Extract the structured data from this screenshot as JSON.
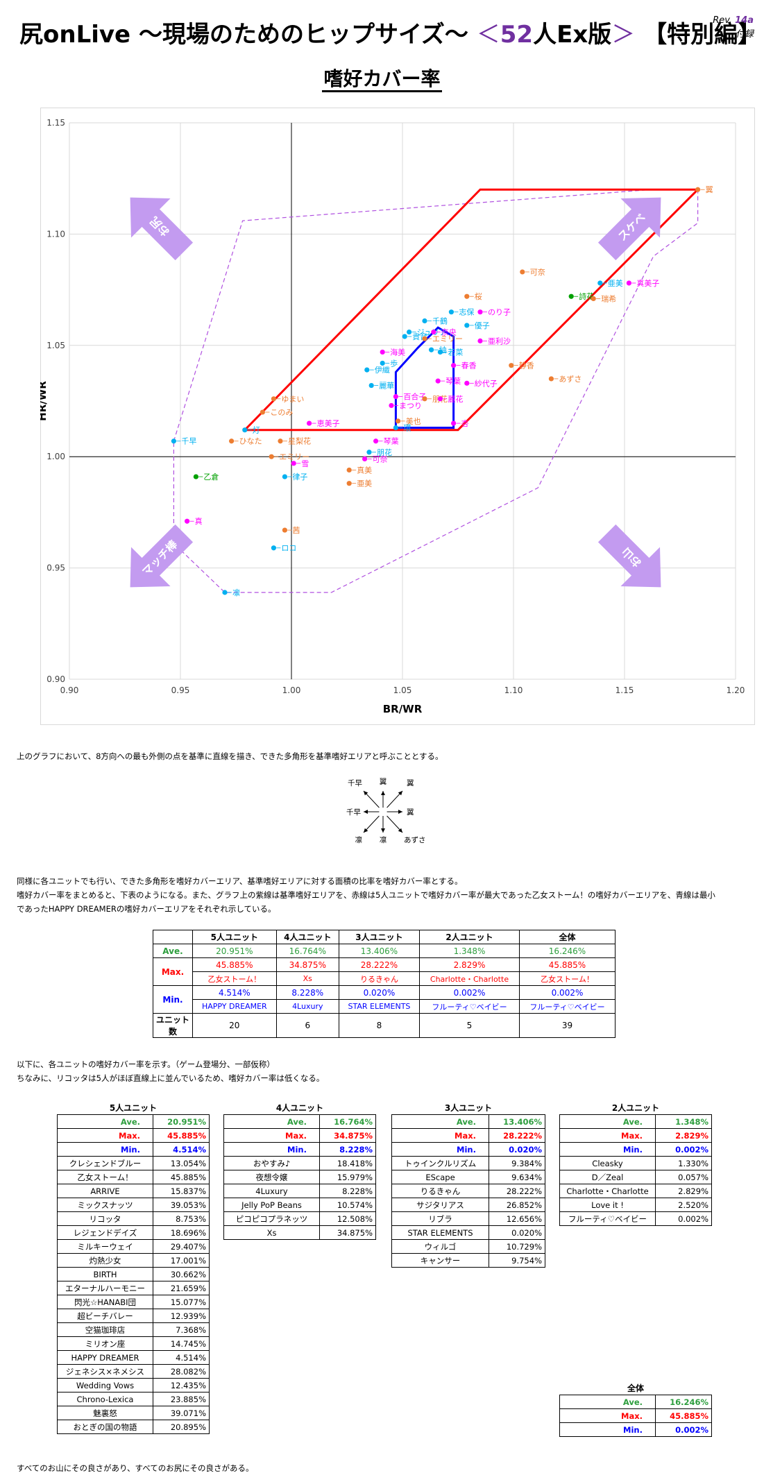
{
  "header": {
    "title_main": "尻onLive ～現場のためのヒップサイズ～",
    "title_open": "＜",
    "title_num": "52",
    "title_mid": "人Ex版",
    "title_close": "＞",
    "title_special": "【特別編】",
    "rev_label": "Rev.",
    "rev_value": "14a",
    "appendix": "付録"
  },
  "colors": {
    "purple": "#7030a0",
    "red": "#ff0000",
    "blue": "#0000ff",
    "green": "#2e9e3e",
    "cyan": "#00b0f0",
    "orange": "#ed7d31",
    "magenta": "#ff00ff",
    "dkgreen": "#00a000"
  },
  "chart_data": {
    "type": "scatter",
    "title": "嗜好カバー率",
    "xlabel": "BR/WR",
    "ylabel": "HR/WR",
    "xlim": [
      0.9,
      1.2
    ],
    "ylim": [
      0.9,
      1.15
    ],
    "xticks": [
      "0.90",
      "0.95",
      "1.00",
      "1.05",
      "1.10",
      "1.15",
      "1.20"
    ],
    "yticks": [
      "0.90",
      "0.95",
      "1.00",
      "1.05",
      "1.10",
      "1.15"
    ],
    "grid": true,
    "crosshair": [
      1.0,
      1.0
    ],
    "points": [
      {
        "x": 1.183,
        "y": 1.12,
        "label": "翼",
        "color": "#ed7d31"
      },
      {
        "x": 1.104,
        "y": 1.083,
        "label": "可奈",
        "color": "#ed7d31"
      },
      {
        "x": 1.139,
        "y": 1.078,
        "label": "亜美",
        "color": "#00b0f0"
      },
      {
        "x": 1.152,
        "y": 1.078,
        "label": "真美子",
        "color": "#ff00ff"
      },
      {
        "x": 1.126,
        "y": 1.072,
        "label": "詩花",
        "color": "#00a000"
      },
      {
        "x": 1.136,
        "y": 1.071,
        "label": "瑞希",
        "color": "#ed7d31"
      },
      {
        "x": 1.079,
        "y": 1.072,
        "label": "桜",
        "color": "#ed7d31"
      },
      {
        "x": 1.072,
        "y": 1.065,
        "label": "志保",
        "color": "#00b0f0"
      },
      {
        "x": 1.085,
        "y": 1.065,
        "label": "のり子",
        "color": "#ff00ff"
      },
      {
        "x": 1.06,
        "y": 1.061,
        "label": "千鶴",
        "color": "#00b0f0"
      },
      {
        "x": 1.079,
        "y": 1.059,
        "label": "優子",
        "color": "#00b0f0"
      },
      {
        "x": 1.053,
        "y": 1.056,
        "label": "ジュリア",
        "color": "#00b0f0"
      },
      {
        "x": 1.064,
        "y": 1.056,
        "label": "奈央",
        "color": "#ff00ff"
      },
      {
        "x": 1.051,
        "y": 1.054,
        "label": "貴音",
        "color": "#00b0f0"
      },
      {
        "x": 1.06,
        "y": 1.053,
        "label": "エミリー",
        "color": "#ed7d31"
      },
      {
        "x": 1.085,
        "y": 1.052,
        "label": "亜利沙",
        "color": "#ff00ff"
      },
      {
        "x": 1.063,
        "y": 1.048,
        "label": "紬",
        "color": "#00b0f0"
      },
      {
        "x": 1.067,
        "y": 1.047,
        "label": "若菜",
        "color": "#00b0f0"
      },
      {
        "x": 1.041,
        "y": 1.047,
        "label": "海美",
        "color": "#ff00ff"
      },
      {
        "x": 1.041,
        "y": 1.042,
        "label": "歩",
        "color": "#00b0f0"
      },
      {
        "x": 1.073,
        "y": 1.041,
        "label": "春香",
        "color": "#ff00ff"
      },
      {
        "x": 1.099,
        "y": 1.041,
        "label": "静香",
        "color": "#ed7d31"
      },
      {
        "x": 1.034,
        "y": 1.039,
        "label": "伊織",
        "color": "#00b0f0"
      },
      {
        "x": 1.066,
        "y": 1.034,
        "label": "琴葉",
        "color": "#ff00ff"
      },
      {
        "x": 1.079,
        "y": 1.033,
        "label": "紗代子",
        "color": "#ff00ff"
      },
      {
        "x": 1.117,
        "y": 1.035,
        "label": "あずさ",
        "color": "#ed7d31"
      },
      {
        "x": 1.036,
        "y": 1.032,
        "label": "麗華",
        "color": "#00b0f0"
      },
      {
        "x": 1.047,
        "y": 1.027,
        "label": "百合子",
        "color": "#ff00ff"
      },
      {
        "x": 1.06,
        "y": 1.026,
        "label": "朋花",
        "color": "#ed7d31"
      },
      {
        "x": 1.045,
        "y": 1.023,
        "label": "まつり",
        "color": "#ff00ff"
      },
      {
        "x": 1.067,
        "y": 1.026,
        "label": "麗花",
        "color": "#ff00ff"
      },
      {
        "x": 0.992,
        "y": 1.026,
        "label": "ゆまい",
        "color": "#ed7d31"
      },
      {
        "x": 0.987,
        "y": 1.02,
        "label": "このみ",
        "color": "#ed7d31"
      },
      {
        "x": 1.048,
        "y": 1.016,
        "label": "美也",
        "color": "#ed7d31"
      },
      {
        "x": 1.008,
        "y": 1.015,
        "label": "恵美子",
        "color": "#ff00ff"
      },
      {
        "x": 1.047,
        "y": 1.013,
        "label": "環",
        "color": "#00b0f0"
      },
      {
        "x": 1.073,
        "y": 1.015,
        "label": "杏",
        "color": "#ff00ff"
      },
      {
        "x": 0.979,
        "y": 1.012,
        "label": "灯",
        "color": "#00b0f0"
      },
      {
        "x": 1.038,
        "y": 1.007,
        "label": "琴葉",
        "color": "#ff00ff"
      },
      {
        "x": 0.947,
        "y": 1.007,
        "label": "千早",
        "color": "#00b0f0"
      },
      {
        "x": 0.973,
        "y": 1.007,
        "label": "ひなた",
        "color": "#ed7d31"
      },
      {
        "x": 0.995,
        "y": 1.007,
        "label": "星梨花",
        "color": "#ed7d31"
      },
      {
        "x": 0.991,
        "y": 1.0,
        "label": "エミリー",
        "color": "#ed7d31"
      },
      {
        "x": 1.035,
        "y": 1.002,
        "label": "朋花",
        "color": "#00b0f0"
      },
      {
        "x": 1.033,
        "y": 0.999,
        "label": "可奈",
        "color": "#ff00ff"
      },
      {
        "x": 1.001,
        "y": 0.997,
        "label": "雪",
        "color": "#ff00ff"
      },
      {
        "x": 1.026,
        "y": 0.994,
        "label": "真美",
        "color": "#ed7d31"
      },
      {
        "x": 0.997,
        "y": 0.991,
        "label": "律子",
        "color": "#00b0f0"
      },
      {
        "x": 0.957,
        "y": 0.991,
        "label": "乙倉",
        "color": "#00a000"
      },
      {
        "x": 1.026,
        "y": 0.988,
        "label": "亜美",
        "color": "#ed7d31"
      },
      {
        "x": 0.953,
        "y": 0.971,
        "label": "真",
        "color": "#ff00ff"
      },
      {
        "x": 0.997,
        "y": 0.967,
        "label": "茜",
        "color": "#ed7d31"
      },
      {
        "x": 0.992,
        "y": 0.959,
        "label": "ロコ",
        "color": "#00b0f0"
      },
      {
        "x": 0.97,
        "y": 0.939,
        "label": "凛",
        "color": "#00b0f0"
      }
    ],
    "ref_area": [
      [
        0.947,
        1.007
      ],
      [
        0.978,
        1.106
      ],
      [
        1.162,
        1.12
      ],
      [
        1.183,
        1.12
      ],
      [
        1.183,
        1.105
      ],
      [
        1.163,
        1.09
      ],
      [
        1.111,
        0.986
      ],
      [
        1.018,
        0.939
      ],
      [
        0.97,
        0.939
      ],
      [
        0.947,
        0.961
      ]
    ],
    "max_area": [
      [
        0.979,
        1.012
      ],
      [
        1.085,
        1.12
      ],
      [
        1.183,
        1.12
      ],
      [
        1.075,
        1.012
      ]
    ],
    "min_area": [
      [
        1.047,
        1.038
      ],
      [
        1.047,
        1.013
      ],
      [
        1.073,
        1.013
      ],
      [
        1.073,
        1.054
      ],
      [
        1.066,
        1.058
      ],
      [
        1.057,
        1.049
      ],
      [
        1.047,
        1.038
      ]
    ],
    "arrows": [
      {
        "text": "お尻",
        "direction": "up-left"
      },
      {
        "text": "スケベ",
        "direction": "up-right"
      },
      {
        "text": "マッチ棒",
        "direction": "down-left"
      },
      {
        "text": "お山",
        "direction": "down-right"
      }
    ]
  },
  "text": {
    "para1": "上のグラフにおいて、8方向への最も外側の点を基準に直線を描き、できた多角形を基準嗜好エリアと呼ぶこととする。",
    "para2_l1": "同様に各ユニットでも行い、できた多角形を嗜好カバーエリア、基準嗜好エリアに対する面積の比率を嗜好カバー率とする。",
    "para2_l2": "嗜好カバー率をまとめると、下表のようになる。また、グラフ上の紫線は基準嗜好エリアを、赤線は5人ユニットで嗜好カバー率が最大であった乙女ストーム！の嗜好カバーエリアを、青線は最小",
    "para2_l3": "であったHAPPY DREAMERの嗜好カバーエリアをそれぞれ示している。",
    "para3_l1": "以下に、各ユニットの嗜好カバー率を示す。（ゲーム登場分、一部仮称）",
    "para3_l2": "ちなみに、リコッタは5人がほぼ直線上に並んでいるため、嗜好カバー率は低くなる。",
    "footer": "すべてのお山にその良さがあり、すべてのお尻にその良さがある。"
  },
  "compass": {
    "n": "翼",
    "ne": "翼",
    "nw": "千早",
    "w": "千早",
    "e": "翼",
    "sw": "凛",
    "s": "凛",
    "se": "あずさ"
  },
  "summary": {
    "headers": [
      "5人ユニット",
      "4人ユニット",
      "3人ユニット",
      "2人ユニット",
      "全体"
    ],
    "ave_label": "Ave.",
    "max_label": "Max.",
    "min_label": "Min.",
    "count_label": "ユニット数",
    "ave": [
      "20.951%",
      "16.764%",
      "13.406%",
      "1.348%",
      "16.246%"
    ],
    "max": [
      "45.885%",
      "34.875%",
      "28.222%",
      "2.829%",
      "45.885%"
    ],
    "max_name": [
      "乙女ストーム！",
      "Xs",
      "りるきゃん",
      "Charlotte・Charlotte",
      "乙女ストーム！"
    ],
    "min": [
      "4.514%",
      "8.228%",
      "0.020%",
      "0.002%",
      "0.002%"
    ],
    "min_name": [
      "HAPPY DREAMER",
      "4Luxury",
      "STAR ELEMENTS",
      "フルーティ♡ベイビー",
      "フルーティ♡ベイビー"
    ],
    "count": [
      "20",
      "6",
      "8",
      "5",
      "39"
    ]
  },
  "unit5": {
    "title": "5人ユニット",
    "ave": "20.951%",
    "max": "45.885%",
    "min": "4.514%",
    "rows": [
      {
        "name": "クレシェンドブルー",
        "value": "13.054%"
      },
      {
        "name": "乙女ストーム！",
        "value": "45.885%"
      },
      {
        "name": "ARRIVE",
        "value": "15.837%"
      },
      {
        "name": "ミックスナッツ",
        "value": "39.053%"
      },
      {
        "name": "リコッタ",
        "value": "8.753%"
      },
      {
        "name": "レジェンドデイズ",
        "value": "18.696%"
      },
      {
        "name": "ミルキーウェイ",
        "value": "29.407%"
      },
      {
        "name": "灼熱少女",
        "value": "17.001%"
      },
      {
        "name": "BIRTH",
        "value": "30.662%"
      },
      {
        "name": "エターナルハーモニー",
        "value": "21.659%"
      },
      {
        "name": "閃光☆HANABI団",
        "value": "15.077%"
      },
      {
        "name": "超ビーチバレー",
        "value": "12.939%"
      },
      {
        "name": "空猫珈琲店",
        "value": "7.368%"
      },
      {
        "name": "ミリオン座",
        "value": "14.745%"
      },
      {
        "name": "HAPPY DREAMER",
        "value": "4.514%"
      },
      {
        "name": "ジェネシス×ネメシス",
        "value": "28.082%"
      },
      {
        "name": "Wedding Vows",
        "value": "12.435%"
      },
      {
        "name": "Chrono-Lexica",
        "value": "23.885%"
      },
      {
        "name": "魅裏怒",
        "value": "39.071%"
      },
      {
        "name": "おとぎの国の物語",
        "value": "20.895%"
      }
    ]
  },
  "unit4": {
    "title": "4人ユニット",
    "ave": "16.764%",
    "max": "34.875%",
    "min": "8.228%",
    "rows": [
      {
        "name": "おやすみ♪",
        "value": "18.418%"
      },
      {
        "name": "夜想令嬢",
        "value": "15.979%"
      },
      {
        "name": "4Luxury",
        "value": "8.228%"
      },
      {
        "name": "Jelly PoP Beans",
        "value": "10.574%"
      },
      {
        "name": "ピコピコプラネッツ",
        "value": "12.508%"
      },
      {
        "name": "Xs",
        "value": "34.875%"
      }
    ]
  },
  "unit3": {
    "title": "3人ユニット",
    "ave": "13.406%",
    "max": "28.222%",
    "min": "0.020%",
    "rows": [
      {
        "name": "トゥインクルリズム",
        "value": "9.384%"
      },
      {
        "name": "EScape",
        "value": "9.634%"
      },
      {
        "name": "りるきゃん",
        "value": "28.222%"
      },
      {
        "name": "サジタリアス",
        "value": "26.852%"
      },
      {
        "name": "リブラ",
        "value": "12.656%"
      },
      {
        "name": "STAR ELEMENTS",
        "value": "0.020%"
      },
      {
        "name": "ウィルゴ",
        "value": "10.729%"
      },
      {
        "name": "キャンサー",
        "value": "9.754%"
      }
    ]
  },
  "unit2": {
    "title": "2人ユニット",
    "ave": "1.348%",
    "max": "2.829%",
    "min": "0.002%",
    "rows": [
      {
        "name": "Cleasky",
        "value": "1.330%"
      },
      {
        "name": "D／Zeal",
        "value": "0.057%"
      },
      {
        "name": "Charlotte・Charlotte",
        "value": "2.829%"
      },
      {
        "name": "Love it !",
        "value": "2.520%"
      },
      {
        "name": "フルーティ♡ベイビー",
        "value": "0.002%"
      }
    ]
  },
  "total": {
    "title": "全体",
    "ave": "16.246%",
    "max": "45.885%",
    "min": "0.002%"
  }
}
